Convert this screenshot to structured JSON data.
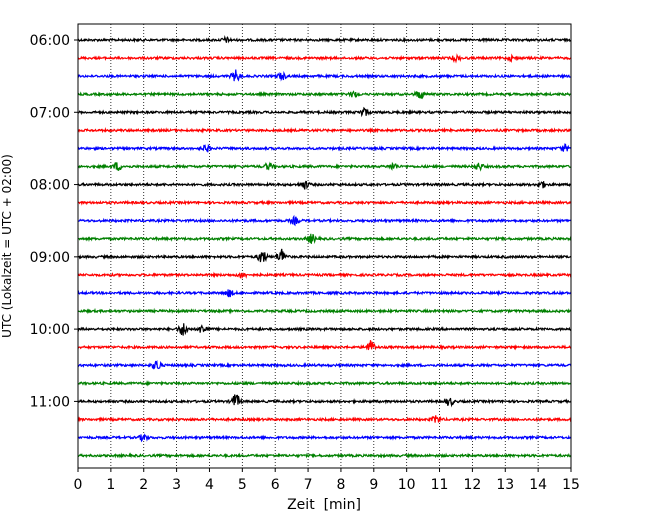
{
  "chart_data": {
    "type": "line",
    "xlabel": "Zeit  [min]",
    "ylabel": "UTC (Lokalzeit = UTC + 02:00)",
    "xlim": [
      0,
      15
    ],
    "x_ticks": [
      "0",
      "1",
      "2",
      "3",
      "4",
      "5",
      "6",
      "7",
      "8",
      "9",
      "10",
      "11",
      "12",
      "13",
      "14",
      "15"
    ],
    "y_tick_labels": [
      "06:00",
      "07:00",
      "08:00",
      "09:00",
      "10:00",
      "11:00"
    ],
    "grid": "vertical dotted",
    "trace_colors": [
      "#000000",
      "#ff0000",
      "#0000ff",
      "#008000"
    ],
    "traces_start": "06:00",
    "trace_interval_min": 15,
    "trace_count": 24,
    "events": [
      {
        "trace": 0,
        "x": 4.5,
        "amp": 1.0
      },
      {
        "trace": 1,
        "x": 11.5,
        "amp": 1.2
      },
      {
        "trace": 1,
        "x": 13.2,
        "amp": 1.0
      },
      {
        "trace": 2,
        "x": 4.8,
        "amp": 2.5
      },
      {
        "trace": 2,
        "x": 6.2,
        "amp": 1.5
      },
      {
        "trace": 3,
        "x": 8.4,
        "amp": 1.3
      },
      {
        "trace": 3,
        "x": 10.4,
        "amp": 2.0
      },
      {
        "trace": 4,
        "x": 8.7,
        "amp": 1.8
      },
      {
        "trace": 6,
        "x": 3.9,
        "amp": 1.5
      },
      {
        "trace": 6,
        "x": 14.8,
        "amp": 1.5
      },
      {
        "trace": 7,
        "x": 1.2,
        "amp": 1.8
      },
      {
        "trace": 7,
        "x": 5.8,
        "amp": 1.5
      },
      {
        "trace": 7,
        "x": 9.6,
        "amp": 1.5
      },
      {
        "trace": 7,
        "x": 12.2,
        "amp": 1.5
      },
      {
        "trace": 8,
        "x": 6.9,
        "amp": 1.8
      },
      {
        "trace": 8,
        "x": 14.1,
        "amp": 1.5
      },
      {
        "trace": 10,
        "x": 6.6,
        "amp": 1.5
      },
      {
        "trace": 11,
        "x": 7.1,
        "amp": 2.0
      },
      {
        "trace": 12,
        "x": 5.6,
        "amp": 3.0
      },
      {
        "trace": 12,
        "x": 6.2,
        "amp": 3.5
      },
      {
        "trace": 13,
        "x": 5.0,
        "amp": 1.2
      },
      {
        "trace": 14,
        "x": 4.6,
        "amp": 1.5
      },
      {
        "trace": 16,
        "x": 3.2,
        "amp": 3.0
      },
      {
        "trace": 16,
        "x": 3.8,
        "amp": 2.0
      },
      {
        "trace": 17,
        "x": 8.9,
        "amp": 2.8
      },
      {
        "trace": 18,
        "x": 2.4,
        "amp": 2.5
      },
      {
        "trace": 20,
        "x": 4.8,
        "amp": 3.2
      },
      {
        "trace": 20,
        "x": 11.3,
        "amp": 1.8
      },
      {
        "trace": 21,
        "x": 10.9,
        "amp": 1.5
      },
      {
        "trace": 22,
        "x": 2.0,
        "amp": 1.5
      }
    ]
  }
}
